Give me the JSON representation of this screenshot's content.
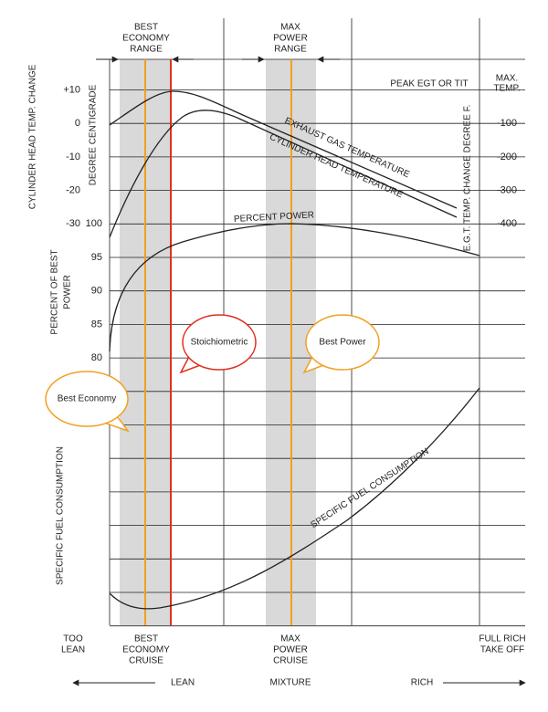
{
  "header": {
    "best_economy_range": [
      "BEST",
      "ECONOMY",
      "RANGE"
    ],
    "max_power_range": [
      "MAX",
      "POWER",
      "RANGE"
    ],
    "peak_egt": "PEAK EGT OR TIT",
    "max_temp": [
      "MAX.",
      "TEMP."
    ]
  },
  "axes": {
    "cht_title": "CYLINDER HEAD TEMP. CHANGE",
    "cht_unit": "DEGREE CENTIGRADE",
    "cht_ticks": [
      "+10",
      "0",
      "-10",
      "-20",
      "-30"
    ],
    "power_title": [
      "PERCENT OF BEST",
      "POWER"
    ],
    "power_ticks": [
      "100",
      "95",
      "90",
      "85",
      "80"
    ],
    "sfc_title": "SPECIFIC FUEL CONSUMPTION",
    "egt_title": "E.G.T. TEMP. CHANGE DEGREE F.",
    "egt_ticks": [
      "-100",
      "-200",
      "-300",
      "-400"
    ]
  },
  "curves": {
    "egt": "EXHAUST GAS TEMPERATURE",
    "cht": "CYLINDER HEAD TEMPERATURE",
    "power": "PERCENT POWER",
    "sfc": "SPECIFIC FUEL CONSUMPTION"
  },
  "callouts": {
    "stoichiometric": "Stoichiometric",
    "best_power": "Best Power",
    "best_economy": "Best Economy"
  },
  "bottom": {
    "too_lean": [
      "TOO",
      "LEAN"
    ],
    "best_economy_cruise": [
      "BEST",
      "ECONOMY",
      "CRUISE"
    ],
    "max_power_cruise": [
      "MAX",
      "POWER",
      "CRUISE"
    ],
    "full_rich": [
      "FULL RICH",
      "TAKE OFF"
    ],
    "lean": "LEAN",
    "mixture": "MIXTURE",
    "rich": "RICH"
  }
}
